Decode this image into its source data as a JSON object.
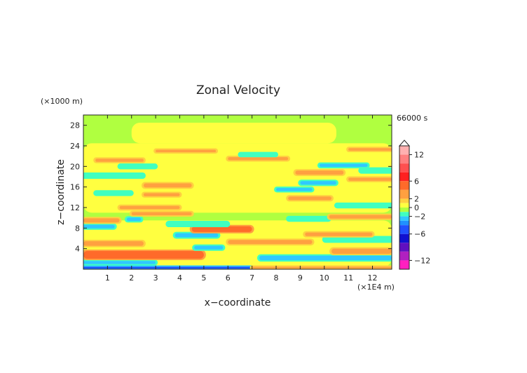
{
  "chart_data": {
    "type": "heatmap",
    "title": "Zonal Velocity",
    "xlabel": "x−coordinate",
    "ylabel": "z−coordinate",
    "x_unit_label": "(×1E4 m)",
    "y_unit_label": "(×1000 m)",
    "time_label": "66000 s",
    "x_ticks": [
      "1",
      "2",
      "3",
      "4",
      "5",
      "6",
      "7",
      "8",
      "9",
      "10",
      "11",
      "12"
    ],
    "y_ticks": [
      "4",
      "8",
      "12",
      "16",
      "20",
      "24",
      "28"
    ],
    "xlim": [
      0,
      12.8
    ],
    "ylim": [
      0,
      30
    ],
    "colorbar": {
      "tick_labels": [
        "12",
        "6",
        "2",
        "0",
        "−2",
        "−6",
        "−12"
      ],
      "tick_values": [
        12,
        6,
        2,
        0,
        -2,
        -6,
        -12
      ],
      "range": [
        -14,
        14
      ],
      "extend": "both",
      "levels": [
        {
          "min": 12,
          "max": 14,
          "color": "#ffb0b0"
        },
        {
          "min": 10,
          "max": 12,
          "color": "#ff8080"
        },
        {
          "min": 8,
          "max": 10,
          "color": "#ff5050"
        },
        {
          "min": 6,
          "max": 8,
          "color": "#ff2020"
        },
        {
          "min": 4,
          "max": 6,
          "color": "#ff6a2a"
        },
        {
          "min": 2,
          "max": 4,
          "color": "#ffa040"
        },
        {
          "min": 1,
          "max": 2,
          "color": "#ffd040"
        },
        {
          "min": 0,
          "max": 1,
          "color": "#ffff40"
        },
        {
          "min": -1,
          "max": 0,
          "color": "#b0ff40"
        },
        {
          "min": -2,
          "max": -1,
          "color": "#40ffc0"
        },
        {
          "min": -3,
          "max": -2,
          "color": "#30c8ff"
        },
        {
          "min": -4,
          "max": -3,
          "color": "#2090ff"
        },
        {
          "min": -6,
          "max": -4,
          "color": "#2050ff"
        },
        {
          "min": -8,
          "max": -6,
          "color": "#1010d0"
        },
        {
          "min": -10,
          "max": -8,
          "color": "#6010c0"
        },
        {
          "min": -12,
          "max": -10,
          "color": "#b020c0"
        },
        {
          "min": -14,
          "max": -12,
          "color": "#ff20c0"
        }
      ]
    },
    "bands": [
      {
        "z": 0.3,
        "v": -4.5,
        "x0": 0.0,
        "x1": 7.0,
        "th": 0.35
      },
      {
        "z": 0.3,
        "v": 3.0,
        "x0": 7.0,
        "x1": 12.8,
        "th": 0.35
      },
      {
        "z": 1.3,
        "v": -2.5,
        "x0": 0.0,
        "x1": 3.0,
        "th": 0.6
      },
      {
        "z": 2.8,
        "v": 4.0,
        "x0": 0.0,
        "x1": 5.0,
        "th": 1.5
      },
      {
        "z": 2.2,
        "v": -3.0,
        "x0": 7.3,
        "x1": 12.8,
        "th": 0.9
      },
      {
        "z": 3.5,
        "v": 3.0,
        "x0": 10.3,
        "x1": 12.8,
        "th": 1.0
      },
      {
        "z": 4.2,
        "v": -2.5,
        "x0": 4.6,
        "x1": 5.8,
        "th": 0.7
      },
      {
        "z": 5.0,
        "v": 3.0,
        "x0": 0.0,
        "x1": 2.5,
        "th": 0.9
      },
      {
        "z": 5.3,
        "v": 3.0,
        "x0": 6.0,
        "x1": 9.5,
        "th": 0.8
      },
      {
        "z": 5.8,
        "v": -2.0,
        "x0": 10.0,
        "x1": 12.8,
        "th": 0.8
      },
      {
        "z": 6.6,
        "v": -2.5,
        "x0": 3.8,
        "x1": 5.6,
        "th": 0.8
      },
      {
        "z": 6.8,
        "v": 3.0,
        "x0": 9.2,
        "x1": 12.0,
        "th": 0.7
      },
      {
        "z": 7.8,
        "v": 4.0,
        "x0": 4.5,
        "x1": 7.0,
        "th": 1.1
      },
      {
        "z": 8.3,
        "v": -2.5,
        "x0": 0.0,
        "x1": 1.3,
        "th": 0.7
      },
      {
        "z": 8.8,
        "v": -1.8,
        "x0": 3.5,
        "x1": 6.0,
        "th": 0.7
      },
      {
        "z": 9.5,
        "v": 3.0,
        "x0": 0.0,
        "x1": 1.5,
        "th": 0.8
      },
      {
        "z": 9.7,
        "v": -3.0,
        "x0": 1.8,
        "x1": 2.4,
        "th": 0.7
      },
      {
        "z": 9.8,
        "v": -1.8,
        "x0": 8.5,
        "x1": 10.2,
        "th": 0.6
      },
      {
        "z": 10.2,
        "v": 3.0,
        "x0": 10.2,
        "x1": 12.8,
        "th": 0.7
      },
      {
        "z": 10.8,
        "v": 2.0,
        "x0": 2.0,
        "x1": 4.5,
        "th": 0.6
      },
      {
        "z": 12.0,
        "v": 3.0,
        "x0": 1.5,
        "x1": 4.0,
        "th": 0.6
      },
      {
        "z": 12.4,
        "v": -2.0,
        "x0": 10.5,
        "x1": 12.8,
        "th": 0.6
      },
      {
        "z": 13.8,
        "v": 3.0,
        "x0": 8.5,
        "x1": 10.3,
        "th": 0.7
      },
      {
        "z": 14.5,
        "v": 3.0,
        "x0": 2.5,
        "x1": 4.0,
        "th": 0.6
      },
      {
        "z": 14.8,
        "v": -2.0,
        "x0": 0.5,
        "x1": 2.0,
        "th": 0.6
      },
      {
        "z": 15.5,
        "v": -2.5,
        "x0": 8.0,
        "x1": 9.5,
        "th": 0.6
      },
      {
        "z": 16.3,
        "v": 3.5,
        "x0": 2.5,
        "x1": 4.5,
        "th": 0.8
      },
      {
        "z": 16.8,
        "v": -3.0,
        "x0": 9.0,
        "x1": 10.5,
        "th": 0.7
      },
      {
        "z": 17.5,
        "v": 3.0,
        "x0": 11.0,
        "x1": 12.8,
        "th": 0.6
      },
      {
        "z": 18.2,
        "v": -2.0,
        "x0": 0.0,
        "x1": 2.5,
        "th": 0.7
      },
      {
        "z": 18.8,
        "v": 3.0,
        "x0": 8.8,
        "x1": 10.8,
        "th": 0.8
      },
      {
        "z": 19.2,
        "v": -2.0,
        "x0": 11.5,
        "x1": 12.8,
        "th": 0.7
      },
      {
        "z": 20.0,
        "v": -2.0,
        "x0": 1.5,
        "x1": 3.0,
        "th": 0.6
      },
      {
        "z": 20.2,
        "v": -2.5,
        "x0": 9.8,
        "x1": 11.8,
        "th": 0.6
      },
      {
        "z": 21.2,
        "v": 3.0,
        "x0": 0.5,
        "x1": 2.5,
        "th": 0.6
      },
      {
        "z": 21.5,
        "v": 2.5,
        "x0": 6.0,
        "x1": 8.5,
        "th": 0.6
      },
      {
        "z": 22.3,
        "v": -2.0,
        "x0": 6.5,
        "x1": 8.0,
        "th": 0.5
      },
      {
        "z": 23.0,
        "v": 2.5,
        "x0": 3.0,
        "x1": 5.5,
        "th": 0.5
      },
      {
        "z": 23.3,
        "v": 2.5,
        "x0": 11.0,
        "x1": 12.8,
        "th": 0.5
      }
    ]
  }
}
